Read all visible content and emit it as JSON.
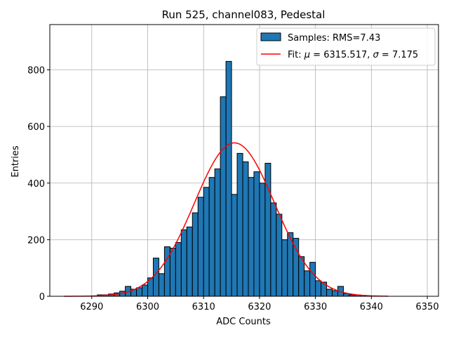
{
  "chart_data": {
    "type": "bar",
    "title": "Run 525, channel083, Pedestal",
    "xlabel": "ADC Counts",
    "ylabel": "Entries",
    "xlim": [
      6282.5,
      6352
    ],
    "ylim": [
      0,
      960
    ],
    "xticks": [
      6290,
      6300,
      6310,
      6320,
      6330,
      6340,
      6350
    ],
    "yticks": [
      0,
      200,
      400,
      600,
      800
    ],
    "grid": true,
    "legend_position": "top-right",
    "histogram": {
      "name": "Samples: RMS=7.43",
      "color": "#1f77b4",
      "bin_start": 6291,
      "bin_width": 1,
      "counts": [
        5,
        5,
        8,
        12,
        18,
        35,
        25,
        30,
        40,
        65,
        135,
        80,
        175,
        170,
        190,
        235,
        245,
        295,
        350,
        385,
        420,
        450,
        705,
        830,
        360,
        505,
        475,
        420,
        440,
        400,
        470,
        330,
        290,
        200,
        225,
        205,
        140,
        90,
        120,
        55,
        50,
        25,
        20,
        35,
        10,
        5,
        5,
        3
      ]
    },
    "fit": {
      "label_prefix": "Fit: ",
      "mu_symbol": "μ",
      "mu": "6315.517",
      "sigma_symbol": "σ",
      "sigma": "7.175",
      "color": "#ff0000",
      "x_range": [
        6285,
        6343
      ],
      "amplitude": 542,
      "mu_value": 6315.517,
      "sigma_value": 7.175
    }
  }
}
